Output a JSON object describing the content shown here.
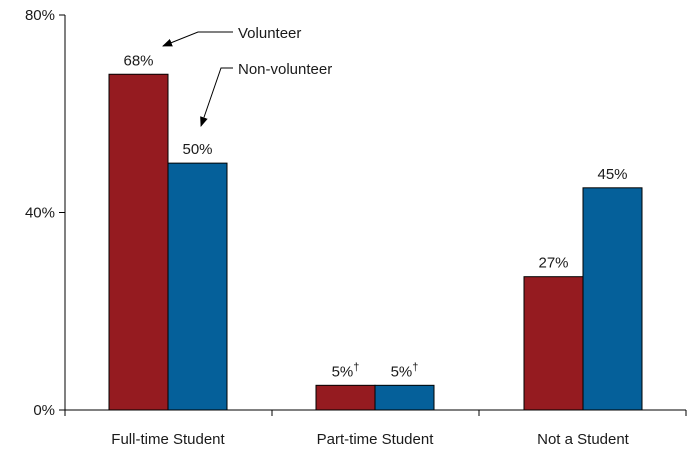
{
  "chart_data": {
    "type": "bar",
    "title": "",
    "xlabel": "",
    "ylabel": "",
    "ylim": [
      0,
      80
    ],
    "yticks": [
      {
        "value": 0,
        "label": "0%"
      },
      {
        "value": 40,
        "label": "40%"
      },
      {
        "value": 80,
        "label": "80%"
      }
    ],
    "categories": [
      "Full-time Student",
      "Part-time Student",
      "Not a Student"
    ],
    "series": [
      {
        "name": "Volunteer",
        "color": "#951b20",
        "values": [
          68,
          5,
          27
        ],
        "labels": [
          "68%",
          "5%",
          "27%"
        ],
        "markers": [
          "",
          "†",
          ""
        ]
      },
      {
        "name": "Non-volunteer",
        "color": "#05609a",
        "values": [
          50,
          5,
          45
        ],
        "labels": [
          "50%",
          "5%",
          "45%"
        ],
        "markers": [
          "",
          "†",
          ""
        ]
      }
    ],
    "legend": "callout-arrows-top-left",
    "grid": false
  }
}
